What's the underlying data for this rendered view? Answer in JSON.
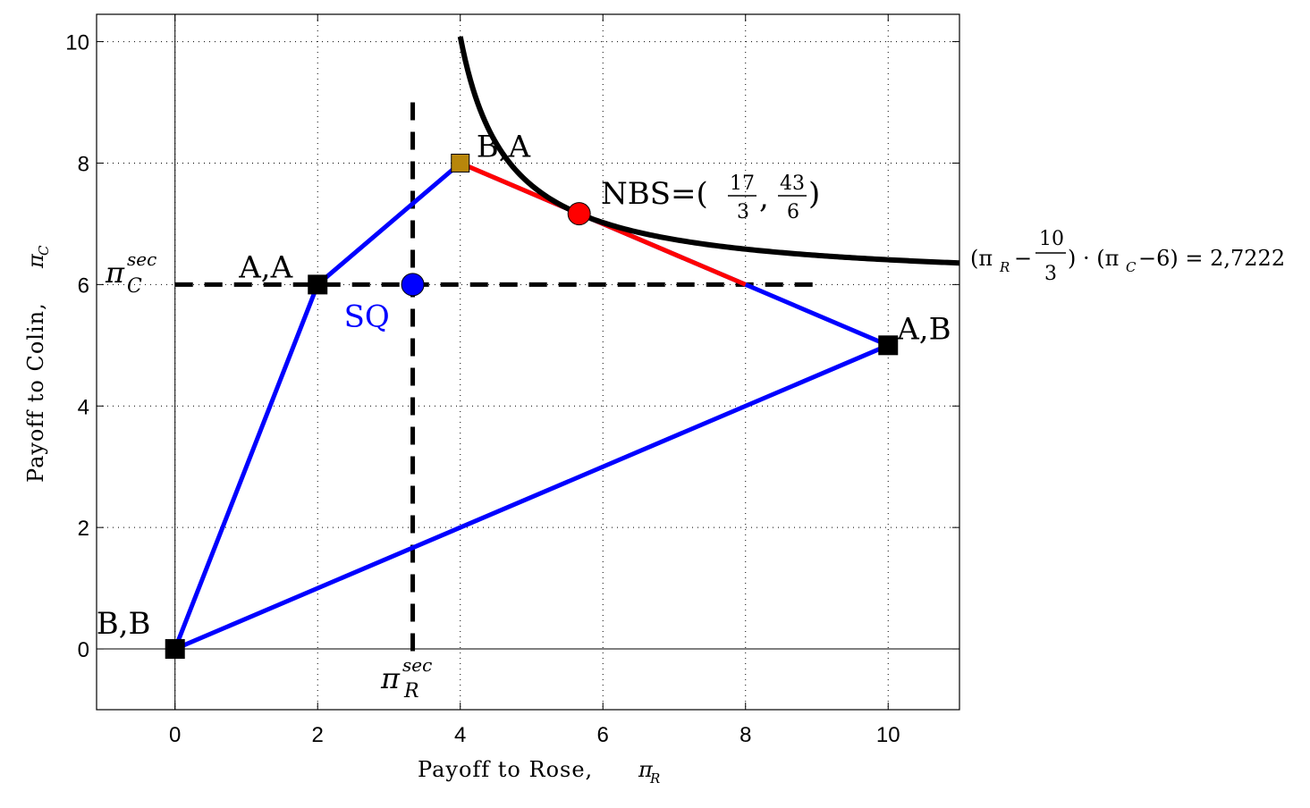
{
  "chart_data": {
    "type": "line",
    "xlabel": "Payoff to Rose, ",
    "xlabel_symbol": "π",
    "xlabel_sub": "R",
    "ylabel": "Payoff to Colin, ",
    "ylabel_symbol": "π",
    "ylabel_sub": "C",
    "xlim": [
      -1.1,
      11
    ],
    "ylim": [
      -1,
      10.45
    ],
    "xticks": [
      0,
      2,
      4,
      6,
      8,
      10
    ],
    "yticks": [
      0,
      2,
      4,
      6,
      8,
      10
    ],
    "grid": true,
    "colors": {
      "region": "#0000ff",
      "negotiation": "#ff0000",
      "curve": "#000000",
      "security": "#000000",
      "sq": "#0000ff",
      "nbs": "#ff0000",
      "ba_marker": "#b8860b",
      "marker": "#000000"
    },
    "feasible_region": [
      [
        0,
        0
      ],
      [
        2,
        6
      ],
      [
        4,
        8
      ],
      [
        10,
        5
      ],
      [
        0,
        0
      ]
    ],
    "negotiation_set": [
      [
        4,
        8
      ],
      [
        8,
        6
      ]
    ],
    "security_levels": {
      "rose": 3.3333,
      "colin": 6,
      "rose_line_top": 9,
      "colin_line_right": 9
    },
    "hyperbola": {
      "x_offset": 3.3333,
      "y_offset": 6,
      "product": 2.7222,
      "x_range": [
        4,
        11
      ]
    },
    "points": [
      {
        "label": "B,B",
        "x": 0,
        "y": 0,
        "marker": "square"
      },
      {
        "label": "A,A",
        "x": 2,
        "y": 6,
        "marker": "square"
      },
      {
        "label": "B,A",
        "x": 4,
        "y": 8,
        "marker": "square-gold"
      },
      {
        "label": "A,B",
        "x": 10,
        "y": 5,
        "marker": "square"
      },
      {
        "label": "SQ",
        "x": 3.3333,
        "y": 6,
        "marker": "circle-blue"
      },
      {
        "label": "NBS",
        "x": 5.6667,
        "y": 7.1667,
        "marker": "circle-red"
      }
    ],
    "annotations": {
      "nbs_prefix": "NBS=(",
      "nbs_x_num": "17",
      "nbs_x_den": "3",
      "nbs_sep": ",",
      "nbs_y_num": "43",
      "nbs_y_den": "6",
      "nbs_suffix": ")",
      "sec_symbol": "π",
      "sec_sup": "sec",
      "sec_sub_c": "C",
      "sec_sub_r": "R",
      "eq_left": "(π",
      "eq_sub_r": "R",
      "eq_minus": "−",
      "eq_num": "10",
      "eq_den": "3",
      "eq_mid": ") · (π",
      "eq_sub_c": "C",
      "eq_right": "−6) = 2,7222"
    }
  }
}
